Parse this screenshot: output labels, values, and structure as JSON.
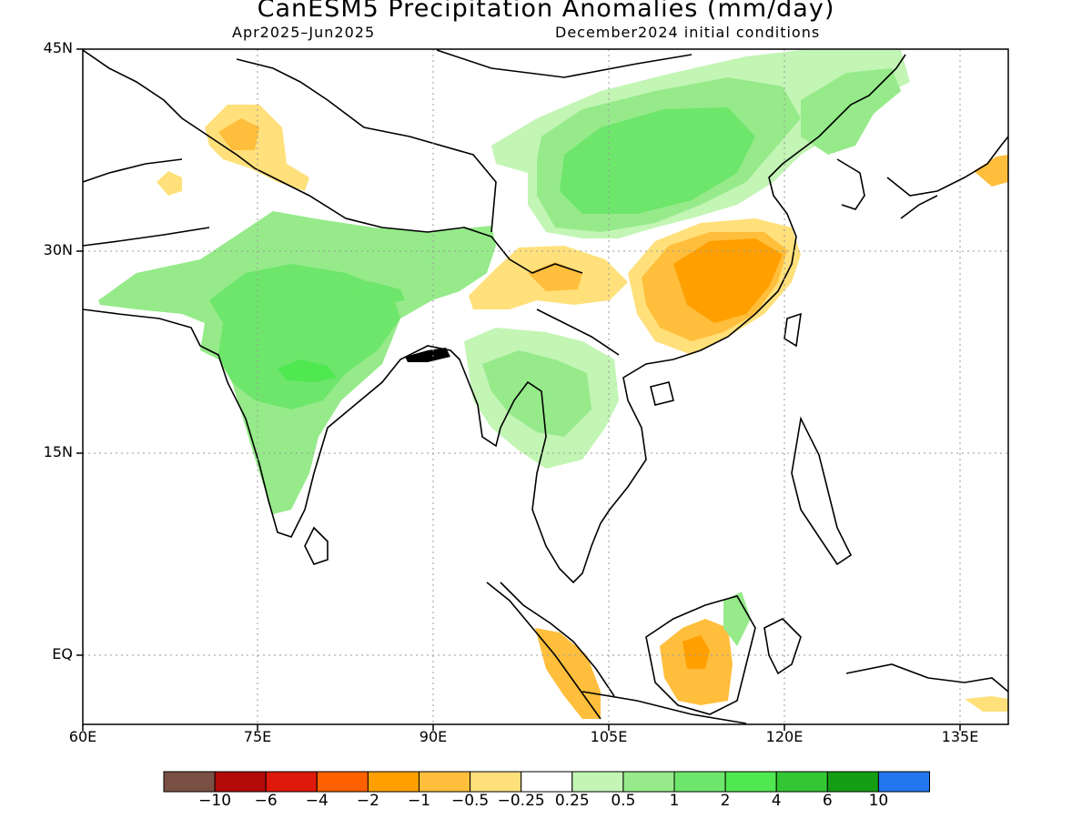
{
  "title": "CanESM5 Precipitation Anomalies (mm/day)",
  "subtitle_left": "Apr2025–Jun2025",
  "subtitle_right": "December2024 initial conditions",
  "lat_labels": [
    "45N",
    "30N",
    "15N",
    "EQ"
  ],
  "lon_labels": [
    "60E",
    "75E",
    "90E",
    "105E",
    "120E",
    "135E"
  ],
  "map_data": {
    "type": "map",
    "region": "South and East Asia",
    "lon_range": [
      60,
      140
    ],
    "lat_range": [
      -5,
      45
    ],
    "grid": true,
    "anomaly_regions": [
      {
        "region": "India",
        "level": "1 to 2"
      },
      {
        "region": "Central India",
        "level": "2 to 4"
      },
      {
        "region": "Nepal / northern Bangladesh",
        "level": "1 to 2"
      },
      {
        "region": "Mongolia / northern China",
        "level": "1 to 2"
      },
      {
        "region": "Northern China core",
        "level": "2 to 4"
      },
      {
        "region": "Southeast China",
        "level": "-2 to -1"
      },
      {
        "region": "Yunnan / eastern Tibet",
        "level": "-1 to -0.5"
      },
      {
        "region": "Kashmir / western Himalaya",
        "level": "-1 to -0.5"
      },
      {
        "region": "Indochina",
        "level": "0.5 to 1"
      },
      {
        "region": "Borneo (southwest)",
        "level": "-2 to -1"
      },
      {
        "region": "Sumatra",
        "level": "-1 to -0.5"
      },
      {
        "region": "Northeast China / Korea",
        "level": "1 to 2"
      },
      {
        "region": "Southern Japan",
        "level": "-1 to -0.5"
      }
    ]
  },
  "legend": {
    "colors": [
      "#7a5045",
      "#b30a0a",
      "#de1a0a",
      "#ff6000",
      "#ff9f00",
      "#ffbe3c",
      "#ffe07a",
      "#ffffff",
      "#c3f5b5",
      "#96ea8a",
      "#6de66b",
      "#4fe851",
      "#33c734",
      "#159e14",
      "#2277ee"
    ],
    "labels": [
      "−10",
      "−6",
      "−4",
      "−2",
      "−1",
      "−0.5",
      "−0.25",
      "0.25",
      "0.5",
      "1",
      "2",
      "4",
      "6",
      "10"
    ]
  }
}
